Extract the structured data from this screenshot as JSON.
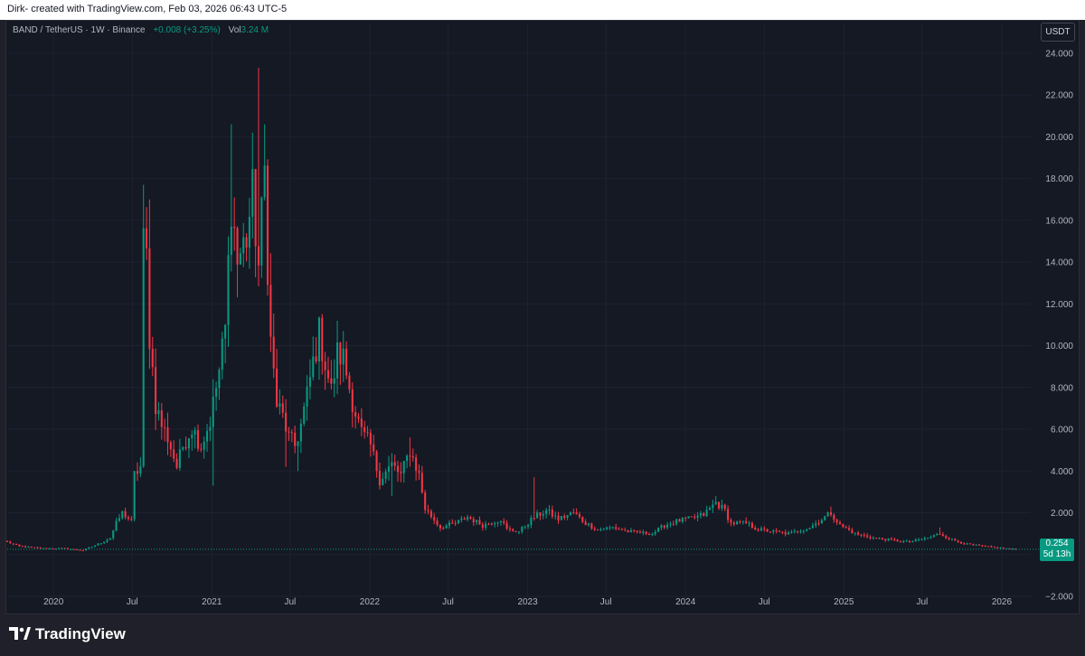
{
  "header": {
    "caption": "Dirk- created with TradingView.com, Feb 03, 2026 06:43 UTC-5"
  },
  "legend": {
    "symbol": "BAND / TetherUS · 1W · Binance",
    "change": "+0.008 (+3.25%)",
    "vol_label": "Vol",
    "vol_value": "3.24 M"
  },
  "currency_button": "USDT",
  "price_tag": {
    "price": "0.254",
    "countdown": "5d 13h"
  },
  "branding": {
    "name": "TradingView"
  },
  "colors": {
    "up": "#089981",
    "down": "#f23645",
    "background": "#151924",
    "grid": "#1e2230"
  },
  "chart_data": {
    "type": "candlestick",
    "symbol": "BAND / TetherUS",
    "interval": "1W",
    "exchange": "Binance",
    "y_axis": {
      "ylim": [
        -2.0,
        24.6
      ],
      "ticks": [
        -2.0,
        0,
        2.0,
        4.0,
        6.0,
        8.0,
        10.0,
        12.0,
        14.0,
        16.0,
        18.0,
        20.0,
        22.0,
        24.0
      ],
      "tick_labels": [
        "−2.000",
        "",
        "2.000",
        "4.000",
        "6.000",
        "8.000",
        "10.000",
        "12.000",
        "14.000",
        "16.000",
        "18.000",
        "20.000",
        "22.000",
        "24.000"
      ]
    },
    "x_axis": {
      "range": [
        "2019-09-16",
        "2026-03-09"
      ],
      "tick_dates": [
        "2020-01-01",
        "2020-07-01",
        "2021-01-01",
        "2021-07-01",
        "2022-01-01",
        "2022-07-01",
        "2023-01-01",
        "2023-07-01",
        "2024-01-01",
        "2024-07-01",
        "2025-01-01",
        "2025-07-01",
        "2026-01-01"
      ],
      "tick_labels": [
        "2020",
        "Jul",
        "2021",
        "Jul",
        "2022",
        "Jul",
        "2023",
        "Jul",
        "2024",
        "Jul",
        "2025",
        "Jul",
        "2026"
      ]
    },
    "last_price": 0.254,
    "close_path": [
      [
        "2019-09-16",
        0.6
      ],
      [
        "2019-10-14",
        0.4
      ],
      [
        "2019-12-02",
        0.3
      ],
      [
        "2020-01-20",
        0.3
      ],
      [
        "2020-03-09",
        0.2
      ],
      [
        "2020-04-13",
        0.5
      ],
      [
        "2020-05-11",
        0.8
      ],
      [
        "2020-05-25",
        1.5
      ],
      [
        "2020-06-08",
        2.0
      ],
      [
        "2020-06-29",
        1.6
      ],
      [
        "2020-07-06",
        3.8
      ],
      [
        "2020-07-20",
        4.2
      ],
      [
        "2020-07-27",
        14.8
      ],
      [
        "2020-08-03",
        14.2
      ],
      [
        "2020-08-10",
        10.5
      ],
      [
        "2020-08-24",
        7.2
      ],
      [
        "2020-09-07",
        6.2
      ],
      [
        "2020-09-21",
        5.6
      ],
      [
        "2020-10-12",
        4.2
      ],
      [
        "2020-10-26",
        5.2
      ],
      [
        "2020-11-16",
        6.1
      ],
      [
        "2020-12-07",
        5.2
      ],
      [
        "2020-12-28",
        6.4
      ],
      [
        "2021-01-18",
        8.8
      ],
      [
        "2021-02-01",
        10.8
      ],
      [
        "2021-02-15",
        17.0
      ],
      [
        "2021-03-01",
        14.0
      ],
      [
        "2021-03-22",
        15.2
      ],
      [
        "2021-04-05",
        17.2
      ],
      [
        "2021-04-19",
        13.8
      ],
      [
        "2021-05-03",
        18.3
      ],
      [
        "2021-05-10",
        14.0
      ],
      [
        "2021-05-17",
        10.2
      ],
      [
        "2021-05-31",
        7.2
      ],
      [
        "2021-06-14",
        6.6
      ],
      [
        "2021-06-28",
        5.6
      ],
      [
        "2021-07-12",
        5.2
      ],
      [
        "2021-07-26",
        6.2
      ],
      [
        "2021-08-09",
        7.6
      ],
      [
        "2021-08-23",
        9.2
      ],
      [
        "2021-09-06",
        10.6
      ],
      [
        "2021-09-20",
        9.2
      ],
      [
        "2021-10-04",
        7.8
      ],
      [
        "2021-10-18",
        9.6
      ],
      [
        "2021-11-01",
        9.4
      ],
      [
        "2021-11-15",
        8.0
      ],
      [
        "2021-11-29",
        6.8
      ],
      [
        "2021-12-13",
        5.8
      ],
      [
        "2022-01-03",
        5.2
      ],
      [
        "2022-01-24",
        3.6
      ],
      [
        "2022-02-21",
        4.3
      ],
      [
        "2022-03-14",
        3.8
      ],
      [
        "2022-04-04",
        5.0
      ],
      [
        "2022-04-25",
        3.8
      ],
      [
        "2022-05-09",
        2.2
      ],
      [
        "2022-06-13",
        1.3
      ],
      [
        "2022-07-18",
        1.5
      ],
      [
        "2022-08-15",
        1.8
      ],
      [
        "2022-09-19",
        1.4
      ],
      [
        "2022-10-31",
        1.7
      ],
      [
        "2022-11-14",
        1.2
      ],
      [
        "2022-12-12",
        1.1
      ],
      [
        "2023-01-16",
        1.8
      ],
      [
        "2023-02-13",
        2.1
      ],
      [
        "2023-03-13",
        1.7
      ],
      [
        "2023-04-17",
        2.0
      ],
      [
        "2023-05-15",
        1.5
      ],
      [
        "2023-06-12",
        1.2
      ],
      [
        "2023-07-17",
        1.3
      ],
      [
        "2023-08-21",
        1.1
      ],
      [
        "2023-10-16",
        1.0
      ],
      [
        "2023-11-13",
        1.4
      ],
      [
        "2023-12-11",
        1.6
      ],
      [
        "2024-01-08",
        1.7
      ],
      [
        "2024-02-12",
        1.9
      ],
      [
        "2024-03-11",
        2.5
      ],
      [
        "2024-04-01",
        2.1
      ],
      [
        "2024-04-15",
        1.5
      ],
      [
        "2024-05-20",
        1.5
      ],
      [
        "2024-06-17",
        1.2
      ],
      [
        "2024-07-22",
        1.1
      ],
      [
        "2024-08-26",
        1.0
      ],
      [
        "2024-10-14",
        1.3
      ],
      [
        "2024-11-11",
        1.7
      ],
      [
        "2024-12-02",
        2.0
      ],
      [
        "2024-12-23",
        1.4
      ],
      [
        "2025-01-27",
        1.0
      ],
      [
        "2025-03-10",
        0.8
      ],
      [
        "2025-04-21",
        0.7
      ],
      [
        "2025-06-02",
        0.6
      ],
      [
        "2025-07-14",
        0.8
      ],
      [
        "2025-08-11",
        1.0
      ],
      [
        "2025-09-08",
        0.7
      ],
      [
        "2025-10-13",
        0.5
      ],
      [
        "2025-11-17",
        0.4
      ],
      [
        "2026-01-05",
        0.3
      ],
      [
        "2026-02-02",
        0.254
      ]
    ],
    "wick_spikes": [
      [
        "2020-07-27",
        17.7
      ],
      [
        "2020-08-10",
        17.0
      ],
      [
        "2021-02-15",
        20.6
      ],
      [
        "2021-04-19",
        23.3
      ],
      [
        "2021-05-03",
        20.6
      ],
      [
        "2021-09-06",
        11.4
      ],
      [
        "2021-11-01",
        10.7
      ],
      [
        "2022-04-04",
        5.6
      ],
      [
        "2023-01-16",
        3.7
      ],
      [
        "2024-03-11",
        2.8
      ],
      [
        "2024-12-02",
        2.3
      ],
      [
        "2025-08-11",
        1.3
      ]
    ],
    "wick_dips": [
      [
        "2021-01-04",
        3.3
      ],
      [
        "2021-06-21",
        4.2
      ],
      [
        "2021-07-19",
        4.0
      ],
      [
        "2022-02-21",
        2.8
      ]
    ]
  }
}
